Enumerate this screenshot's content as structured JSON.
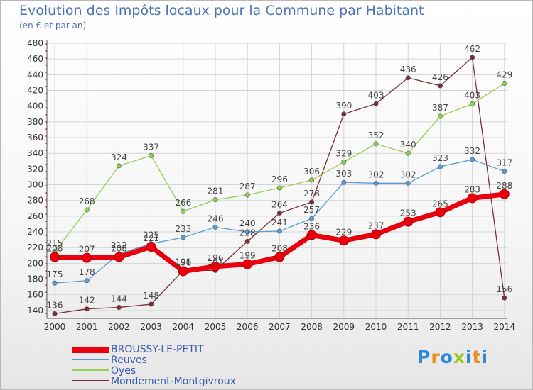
{
  "header": {
    "title": "Evolution des Impôts locaux pour la Commune par Habitant",
    "subtitle": "(en € et par an)"
  },
  "logo": {
    "text": "ProXiti",
    "letters": [
      "P",
      "r",
      "o",
      "x",
      "i",
      "t",
      "i"
    ],
    "colors": [
      "#2e8ad6",
      "#f08a1c",
      "#2e8ad6",
      "#9ac81c",
      "#2e8ad6",
      "#f08a1c",
      "#2e8ad6"
    ]
  },
  "chart_data": {
    "type": "line",
    "title": "Evolution des Impôts locaux pour la Commune par Habitant",
    "subtitle": "(en € et par an)",
    "xlabel": "",
    "ylabel": "",
    "categories": [
      "2000",
      "2001",
      "2002",
      "2003",
      "2004",
      "2005",
      "2006",
      "2007",
      "2008",
      "2009",
      "2010",
      "2011",
      "2012",
      "2013",
      "2014"
    ],
    "ylim": [
      130,
      480
    ],
    "yticks": [
      140,
      160,
      180,
      200,
      220,
      240,
      260,
      280,
      300,
      320,
      340,
      360,
      380,
      400,
      420,
      440,
      460,
      480
    ],
    "grid": true,
    "legend_position": "bottom-left",
    "series": [
      {
        "name": "BROUSSY-LE-PETIT",
        "color": "#e8000e",
        "values": [
          208,
          207,
          208,
          221,
          190,
          196,
          199,
          208,
          236,
          229,
          237,
          253,
          265,
          283,
          288
        ],
        "labels": [
          "208",
          "207",
          "208",
          "221",
          "190",
          "196",
          "199",
          "208",
          "236",
          "229",
          "237",
          "253",
          "265",
          "283",
          "288"
        ]
      },
      {
        "name": "Reuves",
        "color": "#5b9bd5",
        "values": [
          175,
          178,
          212,
          225,
          233,
          246,
          240,
          241,
          257,
          303,
          302,
          302,
          323,
          332,
          317
        ],
        "labels": [
          "175",
          "178",
          "212",
          "225",
          "233",
          "246",
          "240",
          "241",
          "257",
          "303",
          "302",
          "302",
          "323",
          "332",
          "317"
        ]
      },
      {
        "name": "Oyes",
        "color": "#92d050",
        "values": [
          215,
          268,
          324,
          337,
          266,
          281,
          287,
          296,
          306,
          329,
          352,
          340,
          387,
          403,
          429
        ],
        "labels": [
          "215",
          "268",
          "324",
          "337",
          "266",
          "281",
          "287",
          "296",
          "306",
          "329",
          "352",
          "340",
          "387",
          "403",
          "429"
        ]
      },
      {
        "name": "Mondement-Montgivroux",
        "color": "#7a2e38",
        "values": [
          136,
          142,
          144,
          148,
          191,
          191,
          228,
          264,
          278,
          390,
          403,
          436,
          426,
          462,
          156
        ],
        "labels": [
          "136",
          "142",
          "144",
          "148",
          "191",
          "191",
          "228",
          "264",
          "278",
          "390",
          "403",
          "436",
          "426",
          "462",
          "156"
        ]
      }
    ]
  }
}
